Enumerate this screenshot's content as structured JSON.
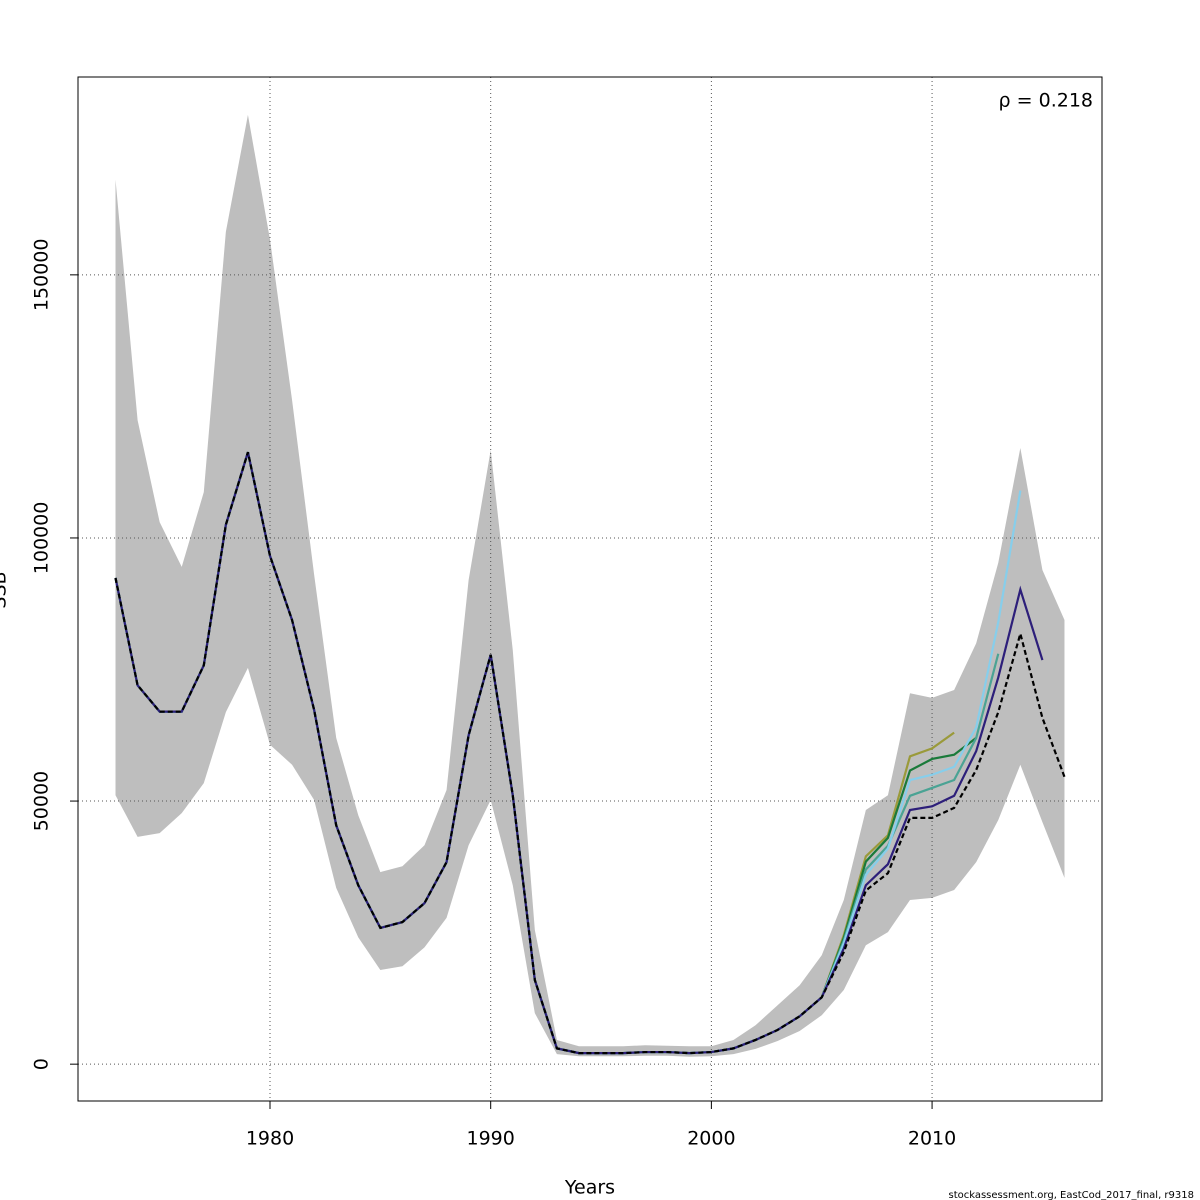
{
  "chart_data": {
    "type": "line",
    "xlabel": "Years",
    "ylabel": "SSB",
    "annotation": "ρ = 0.218",
    "footer": "stockassessment.org, EastCod_2017_final, r9318",
    "x": [
      1973,
      1974,
      1975,
      1976,
      1977,
      1978,
      1979,
      1980,
      1981,
      1982,
      1983,
      1984,
      1985,
      1986,
      1987,
      1988,
      1989,
      1990,
      1991,
      1992,
      1993,
      1994,
      1995,
      1996,
      1997,
      1998,
      1999,
      2000,
      2001,
      2002,
      2003,
      2004,
      2005,
      2006,
      2007,
      2008,
      2009,
      2010,
      2011,
      2012,
      2013,
      2014,
      2015,
      2016
    ],
    "band": {
      "color": "#bebebe",
      "upper": [
        168100,
        122400,
        103000,
        94500,
        108700,
        158200,
        180400,
        156700,
        126200,
        93000,
        62000,
        47300,
        36500,
        37600,
        41600,
        52100,
        92000,
        116700,
        78700,
        25500,
        4600,
        3400,
        3400,
        3400,
        3600,
        3500,
        3400,
        3400,
        4600,
        7400,
        11200,
        15000,
        20700,
        31200,
        48300,
        51100,
        70500,
        69600,
        71100,
        80000,
        95300,
        117100,
        93900,
        84400
      ],
      "lower": [
        51100,
        43200,
        43900,
        47700,
        53400,
        66900,
        75300,
        60700,
        56900,
        50200,
        33500,
        24100,
        17900,
        18600,
        22200,
        27800,
        41600,
        50200,
        34000,
        9700,
        1900,
        1500,
        1500,
        1500,
        1600,
        1600,
        1400,
        1500,
        1900,
        2900,
        4400,
        6300,
        9300,
        14100,
        22600,
        25100,
        31200,
        31600,
        33100,
        38400,
        46400,
        56900,
        46000,
        35400
      ]
    },
    "series": [
      {
        "color": "#9a9a3a",
        "values": [
          92400,
          72000,
          67000,
          67000,
          75800,
          102500,
          116300,
          96600,
          84400,
          67300,
          45400,
          34000,
          25900,
          27000,
          30600,
          38400,
          62500,
          77800,
          51100,
          16000,
          3000,
          2100,
          2100,
          2100,
          2300,
          2300,
          2100,
          2300,
          3000,
          4600,
          6500,
          9100,
          12700,
          24500,
          39500,
          43500,
          58500,
          60000,
          63000,
          null,
          null,
          null,
          null,
          null
        ]
      },
      {
        "color": "#1a7a3a",
        "values": [
          92400,
          72000,
          67000,
          67000,
          75800,
          102500,
          116300,
          96600,
          84400,
          67300,
          45400,
          34000,
          25900,
          27000,
          30600,
          38400,
          62500,
          77800,
          51100,
          16000,
          3000,
          2100,
          2100,
          2100,
          2300,
          2300,
          2100,
          2300,
          3000,
          4600,
          6500,
          9100,
          12700,
          24000,
          38500,
          43000,
          55800,
          58000,
          58800,
          62000,
          null,
          null,
          null,
          null
        ]
      },
      {
        "color": "#4aa394",
        "values": [
          92400,
          72000,
          67000,
          67000,
          75800,
          102500,
          116300,
          96600,
          84400,
          67300,
          45400,
          34000,
          25900,
          27000,
          30600,
          38400,
          62500,
          77800,
          51100,
          16000,
          3000,
          2100,
          2100,
          2100,
          2300,
          2300,
          2100,
          2300,
          3000,
          4600,
          6500,
          9100,
          12700,
          23500,
          37000,
          41500,
          51000,
          52500,
          54000,
          62000,
          78000,
          null,
          null,
          null
        ]
      },
      {
        "color": "#87ceeb",
        "values": [
          92400,
          72000,
          67000,
          67000,
          75800,
          102500,
          116300,
          96600,
          84400,
          67300,
          45400,
          34000,
          25900,
          27000,
          30600,
          38400,
          62500,
          77800,
          51100,
          16000,
          3000,
          2100,
          2100,
          2100,
          2300,
          2300,
          2100,
          2300,
          3000,
          4600,
          6500,
          9100,
          12700,
          23000,
          36000,
          41000,
          54000,
          55000,
          56500,
          64000,
          84000,
          109000,
          null,
          null
        ]
      },
      {
        "color": "#2d1f7a",
        "values": [
          92400,
          72000,
          67000,
          67000,
          75800,
          102500,
          116300,
          96600,
          84400,
          67300,
          45400,
          34000,
          25900,
          27000,
          30600,
          38400,
          62500,
          77800,
          51100,
          16000,
          3000,
          2100,
          2100,
          2100,
          2300,
          2300,
          2100,
          2300,
          3000,
          4600,
          6500,
          9100,
          12700,
          22000,
          34000,
          38000,
          48300,
          49000,
          51000,
          59500,
          73500,
          90200,
          76800,
          null
        ]
      },
      {
        "color": "#000000",
        "dashed": true,
        "values": [
          92400,
          72000,
          67000,
          67000,
          75800,
          102500,
          116300,
          96600,
          84400,
          67300,
          45400,
          34000,
          25900,
          27000,
          30600,
          38400,
          62500,
          77800,
          51100,
          16000,
          3000,
          2100,
          2100,
          2100,
          2300,
          2300,
          2100,
          2300,
          3000,
          4600,
          6500,
          9100,
          12700,
          21300,
          33000,
          36300,
          46800,
          46800,
          48700,
          55900,
          66900,
          81800,
          65800,
          54600
        ]
      }
    ],
    "xlim": [
      1971.3,
      2017.7
    ],
    "ylim": [
      -7000,
      187600
    ],
    "xticks": [
      1980,
      1990,
      2000,
      2010
    ],
    "yticks": [
      0,
      50000,
      100000,
      150000
    ],
    "grid": true
  }
}
